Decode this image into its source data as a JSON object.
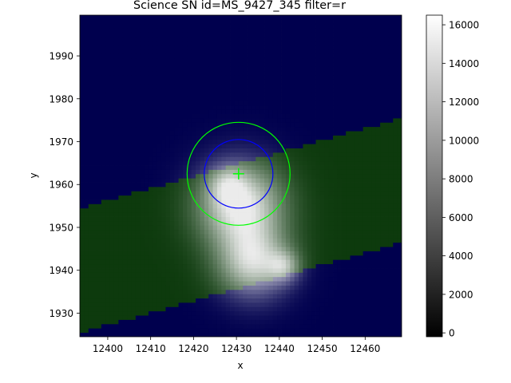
{
  "chart_data": [
    {
      "type": "heatmap",
      "title": "Science SN id=MS_9427_345 filter=r",
      "xlabel": "x",
      "ylabel": "y",
      "xlim": [
        12393.5,
        12468.5
      ],
      "ylim": [
        1924.5,
        1999.5
      ],
      "x_ticks": [
        12400,
        12410,
        12420,
        12430,
        12440,
        12450,
        12460
      ],
      "y_ticks": [
        1930,
        1940,
        1950,
        1960,
        1970,
        1980,
        1990
      ],
      "grid": false,
      "background_color": "#00004e",
      "overlay_color": "#0d3a0d",
      "overlay_band": {
        "description_visible": "green shaded band across image",
        "left_edge_y": [
          1925.5,
          1954.5
        ],
        "right_edge_y": [
          1946.5,
          1975.5
        ]
      },
      "sources": [
        {
          "x": 12431,
          "y": 1955,
          "amplitude": 9000,
          "sigma": 6.5
        },
        {
          "x": 12434,
          "y": 1942,
          "amplitude": 7500,
          "sigma": 5.5
        },
        {
          "x": 12441,
          "y": 1941,
          "amplitude": 4500,
          "sigma": 2.5
        },
        {
          "x": 12428,
          "y": 1960,
          "amplitude": 3500,
          "sigma": 3.0
        }
      ],
      "marker": {
        "x": 12430.5,
        "y": 1962.5,
        "symbol": "+",
        "color": "#00ff00"
      },
      "circles": [
        {
          "cx": 12430.5,
          "cy": 1962.5,
          "r": 8,
          "color": "#0000ff"
        },
        {
          "cx": 12430.5,
          "cy": 1962.5,
          "r": 12,
          "color": "#00ff00"
        }
      ]
    },
    {
      "type": "colorbar",
      "colormap": "gray",
      "range": [
        -200,
        16500
      ],
      "ticks": [
        0,
        2000,
        4000,
        6000,
        8000,
        10000,
        12000,
        14000,
        16000
      ]
    }
  ]
}
